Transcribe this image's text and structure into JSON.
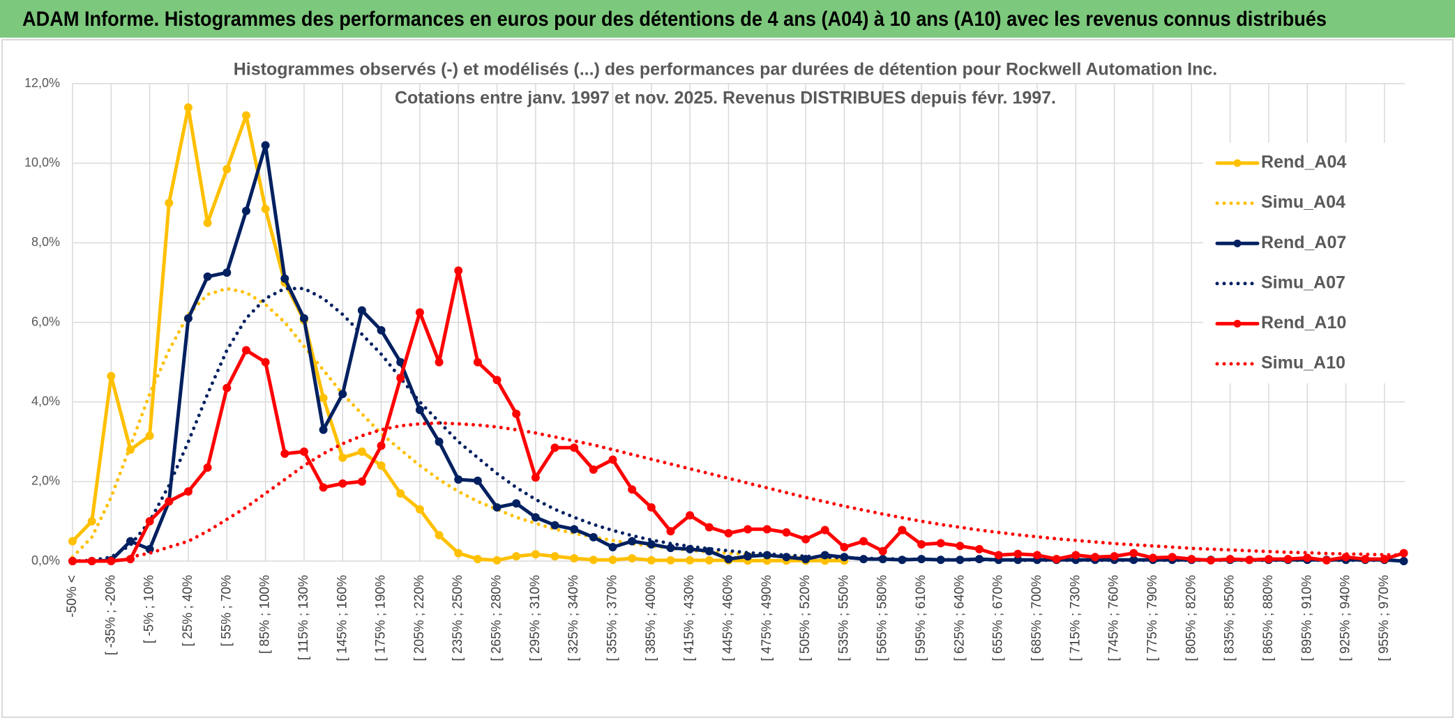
{
  "header": {
    "title": "ADAM Informe. Histogrammes des performances en euros pour des détentions de 4 ans (A04) à 10 ans (A10) avec les revenus connus distribués"
  },
  "chart_data": {
    "type": "line",
    "title": "Histogrammes observés (-) et modélisés (...) des performances par durées de détention pour Rockwell Automation Inc.",
    "subtitle": "Cotations entre janv. 1997 et nov. 2025. Revenus DISTRIBUES depuis févr. 1997.",
    "categories": [
      "-50% <",
      null,
      "[ -35% ; -20%",
      null,
      "[ -5% ; 10%",
      null,
      "[ 25% ; 40%",
      null,
      "[ 55% ; 70%",
      null,
      "[ 85% ; 100%",
      null,
      "[ 115% ; 130%",
      null,
      "[ 145% ; 160%",
      null,
      "[ 175% ; 190%",
      null,
      "[ 205% ; 220%",
      null,
      "[ 235% ; 250%",
      null,
      "[ 265% ; 280%",
      null,
      "[ 295% ; 310%",
      null,
      "[ 325% ; 340%",
      null,
      "[ 355% ; 370%",
      null,
      "[ 385% ; 400%",
      null,
      "[ 415% ; 430%",
      null,
      "[ 445% ; 460%",
      null,
      "[ 475% ; 490%",
      null,
      "[ 505% ; 520%",
      null,
      "[ 535% ; 550%",
      null,
      "[ 565% ; 580%",
      null,
      "[ 595% ; 610%",
      null,
      "[ 625% ; 640%",
      null,
      "[ 655% ; 670%",
      null,
      "[ 685% ; 700%",
      null,
      "[ 715% ; 730%",
      null,
      "[ 745% ; 760%",
      null,
      "[ 775% ; 790%",
      null,
      "[ 805% ; 820%",
      null,
      "[ 835% ; 850%",
      null,
      "[ 865% ; 880%",
      null,
      "[ 895% ; 910%",
      null,
      "[ 925% ; 940%",
      null,
      "[ 955% ; 970%",
      null
    ],
    "ylim": [
      0,
      12
    ],
    "yticks": [
      {
        "value": 0,
        "label": "0,0%"
      },
      {
        "value": 2,
        "label": "2,0%"
      },
      {
        "value": 4,
        "label": "4,0%"
      },
      {
        "value": 6,
        "label": "6,0%"
      },
      {
        "value": 8,
        "label": "8,0%"
      },
      {
        "value": 10,
        "label": "10,0%"
      },
      {
        "value": 12,
        "label": "12,0%"
      }
    ],
    "grid": true,
    "legend": "right",
    "series": [
      {
        "name": "Rend_A04",
        "color": "#ffc000",
        "style": "solid",
        "markers": true,
        "values": [
          0.5,
          1.0,
          4.65,
          2.8,
          3.15,
          9.0,
          11.4,
          8.5,
          9.85,
          11.2,
          8.85,
          7.0,
          6.05,
          4.1,
          2.6,
          2.75,
          2.4,
          1.7,
          1.3,
          0.65,
          0.2,
          0.05,
          0.02,
          0.12,
          0.17,
          0.12,
          0.07,
          0.03,
          0.03,
          0.07,
          0.02,
          0.02,
          0.02,
          0.02,
          0.02,
          0.01,
          0.01,
          0.01,
          0.01,
          0.01,
          0.01,
          null,
          null,
          null,
          null,
          null,
          null,
          null,
          null,
          null,
          null,
          null,
          null,
          null,
          null,
          null,
          null,
          null,
          null,
          null,
          null,
          null,
          null,
          null,
          null,
          null,
          null,
          null,
          null,
          null
        ]
      },
      {
        "name": "Simu_A04",
        "color": "#ffc000",
        "style": "dotted",
        "markers": false,
        "values": [
          0.1,
          0.6,
          1.6,
          2.9,
          4.2,
          5.3,
          6.2,
          6.7,
          6.85,
          6.75,
          6.45,
          6.0,
          5.4,
          4.8,
          4.2,
          3.7,
          3.2,
          2.8,
          2.4,
          2.05,
          1.75,
          1.5,
          1.3,
          1.1,
          0.95,
          0.8,
          0.7,
          0.6,
          0.52,
          0.44,
          0.38,
          0.32,
          0.27,
          0.23,
          0.2,
          0.17,
          0.14,
          0.12,
          0.1,
          0.08,
          0.07,
          null,
          null,
          null,
          null,
          null,
          null,
          null,
          null,
          null,
          null,
          null,
          null,
          null,
          null,
          null,
          null,
          null,
          null,
          null,
          null,
          null,
          null,
          null,
          null,
          null,
          null,
          null,
          null,
          null
        ]
      },
      {
        "name": "Rend_A07",
        "color": "#002060",
        "style": "solid",
        "markers": true,
        "values": [
          0,
          0,
          0.02,
          0.5,
          0.3,
          1.5,
          6.1,
          7.15,
          7.25,
          8.8,
          10.45,
          7.1,
          6.1,
          3.3,
          4.2,
          6.3,
          5.8,
          5.0,
          3.8,
          3.0,
          2.05,
          2.02,
          1.35,
          1.45,
          1.1,
          0.9,
          0.8,
          0.6,
          0.35,
          0.5,
          0.42,
          0.33,
          0.3,
          0.25,
          0.05,
          0.12,
          0.15,
          0.1,
          0.05,
          0.15,
          0.1,
          0.05,
          0.05,
          0.03,
          0.05,
          0.03,
          0.03,
          0.05,
          0.03,
          0.03,
          0.03,
          0.03,
          0.03,
          0.03,
          0.03,
          0.03,
          0.03,
          0.03,
          0.03,
          0.03,
          0.03,
          0.03,
          0.03,
          0.03,
          0.03,
          0.03,
          0.03,
          0.03,
          0.03,
          0
        ]
      },
      {
        "name": "Simu_A07",
        "color": "#002060",
        "style": "dotted",
        "markers": false,
        "values": [
          0,
          0.02,
          0.1,
          0.4,
          1.0,
          1.9,
          3.0,
          4.2,
          5.3,
          6.1,
          6.6,
          6.85,
          6.85,
          6.6,
          6.2,
          5.7,
          5.2,
          4.6,
          4.0,
          3.5,
          3.0,
          2.6,
          2.2,
          1.85,
          1.55,
          1.3,
          1.1,
          0.92,
          0.77,
          0.64,
          0.53,
          0.44,
          0.37,
          0.31,
          0.26,
          0.21,
          0.18,
          0.15,
          0.12,
          0.1,
          0.08,
          0.07,
          0.06,
          0.05,
          0.04,
          0.04,
          0.03,
          0.03,
          0.03,
          0.02,
          0.02,
          0.02,
          0.02,
          0.02,
          0.02,
          0.02,
          0.02,
          0.02,
          0.02,
          0.02,
          0.02,
          0.02,
          0.02,
          0.02,
          0.02,
          0.02,
          0.02,
          0.02,
          0.02,
          0.02
        ]
      },
      {
        "name": "Rend_A10",
        "color": "#ff0000",
        "style": "solid",
        "markers": true,
        "values": [
          0,
          0,
          0,
          0.05,
          1.0,
          1.5,
          1.75,
          2.35,
          4.35,
          5.3,
          5.0,
          2.7,
          2.75,
          1.85,
          1.95,
          2.0,
          2.9,
          4.6,
          6.25,
          5.0,
          7.3,
          5.0,
          4.55,
          3.7,
          2.1,
          2.85,
          2.85,
          2.3,
          2.55,
          1.8,
          1.35,
          0.75,
          1.15,
          0.85,
          0.7,
          0.8,
          0.8,
          0.72,
          0.55,
          0.78,
          0.35,
          0.5,
          0.25,
          0.78,
          0.42,
          0.45,
          0.38,
          0.3,
          0.15,
          0.18,
          0.15,
          0.05,
          0.15,
          0.1,
          0.12,
          0.2,
          0.08,
          0.1,
          0.05,
          0.02,
          0.05,
          0.03,
          0.05,
          0.05,
          0.08,
          0.02,
          0.1,
          0.05,
          0.05,
          0.2
        ]
      },
      {
        "name": "Simu_A10",
        "color": "#ff0000",
        "style": "dotted",
        "markers": false,
        "values": [
          null,
          null,
          null,
          0.1,
          0.2,
          0.35,
          0.5,
          0.75,
          1.05,
          1.35,
          1.7,
          2.05,
          2.4,
          2.7,
          2.95,
          3.15,
          3.3,
          3.4,
          3.45,
          3.47,
          3.45,
          3.42,
          3.37,
          3.3,
          3.22,
          3.12,
          3.02,
          2.92,
          2.8,
          2.68,
          2.56,
          2.44,
          2.32,
          2.2,
          2.08,
          1.96,
          1.84,
          1.72,
          1.6,
          1.49,
          1.38,
          1.28,
          1.18,
          1.09,
          1.0,
          0.92,
          0.85,
          0.78,
          0.72,
          0.66,
          0.61,
          0.56,
          0.52,
          0.48,
          0.44,
          0.41,
          0.38,
          0.35,
          0.32,
          0.3,
          0.28,
          0.26,
          0.24,
          0.22,
          0.21,
          0.19,
          0.18,
          0.17,
          0.16,
          0.15
        ]
      }
    ]
  }
}
